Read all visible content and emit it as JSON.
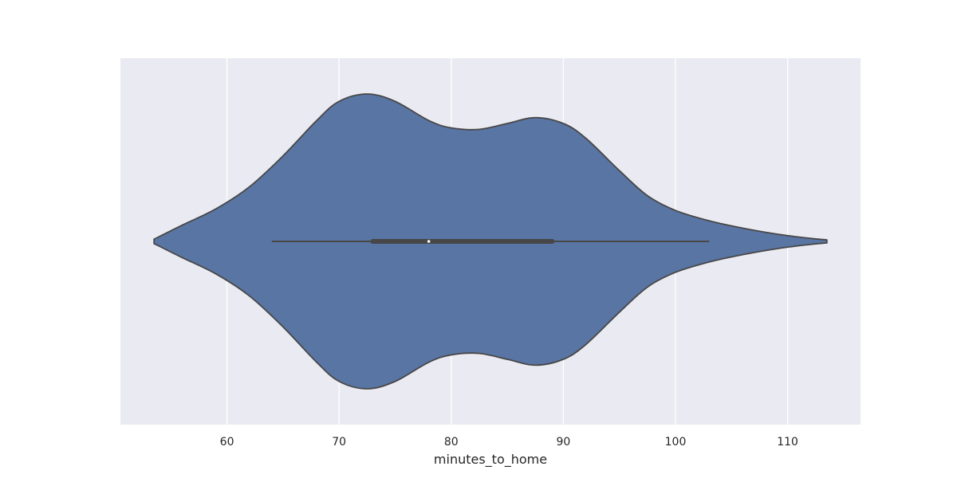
{
  "chart_data": {
    "type": "violin",
    "orientation": "horizontal",
    "xlabel": "minutes_to_home",
    "ylabel": "",
    "xlim": [
      50.5,
      116.5
    ],
    "xticks": [
      60,
      70,
      80,
      90,
      100,
      110
    ],
    "xtick_labels": [
      "60",
      "70",
      "80",
      "90",
      "100",
      "110"
    ],
    "grid": true,
    "colors": {
      "background": "#eaeaf2",
      "grid": "#ffffff",
      "violin_fill": "#5975a4",
      "outline": "#474747",
      "median_marker": "#ffffff"
    },
    "density": [
      [
        53.5,
        0.015
      ],
      [
        56,
        0.11
      ],
      [
        59,
        0.22
      ],
      [
        62,
        0.37
      ],
      [
        65,
        0.58
      ],
      [
        68,
        0.82
      ],
      [
        70,
        0.95
      ],
      [
        72.5,
        1.0
      ],
      [
        75,
        0.95
      ],
      [
        78,
        0.82
      ],
      [
        80,
        0.77
      ],
      [
        82.5,
        0.76
      ],
      [
        85,
        0.8
      ],
      [
        87.5,
        0.84
      ],
      [
        90,
        0.8
      ],
      [
        92,
        0.7
      ],
      [
        95,
        0.48
      ],
      [
        97.5,
        0.31
      ],
      [
        100,
        0.21
      ],
      [
        103,
        0.14
      ],
      [
        106,
        0.09
      ],
      [
        109,
        0.05
      ],
      [
        111.5,
        0.025
      ],
      [
        113.5,
        0.01
      ]
    ],
    "box": {
      "whisker_low": 64,
      "q1": 73,
      "median": 78,
      "q3": 89,
      "whisker_high": 103
    }
  }
}
